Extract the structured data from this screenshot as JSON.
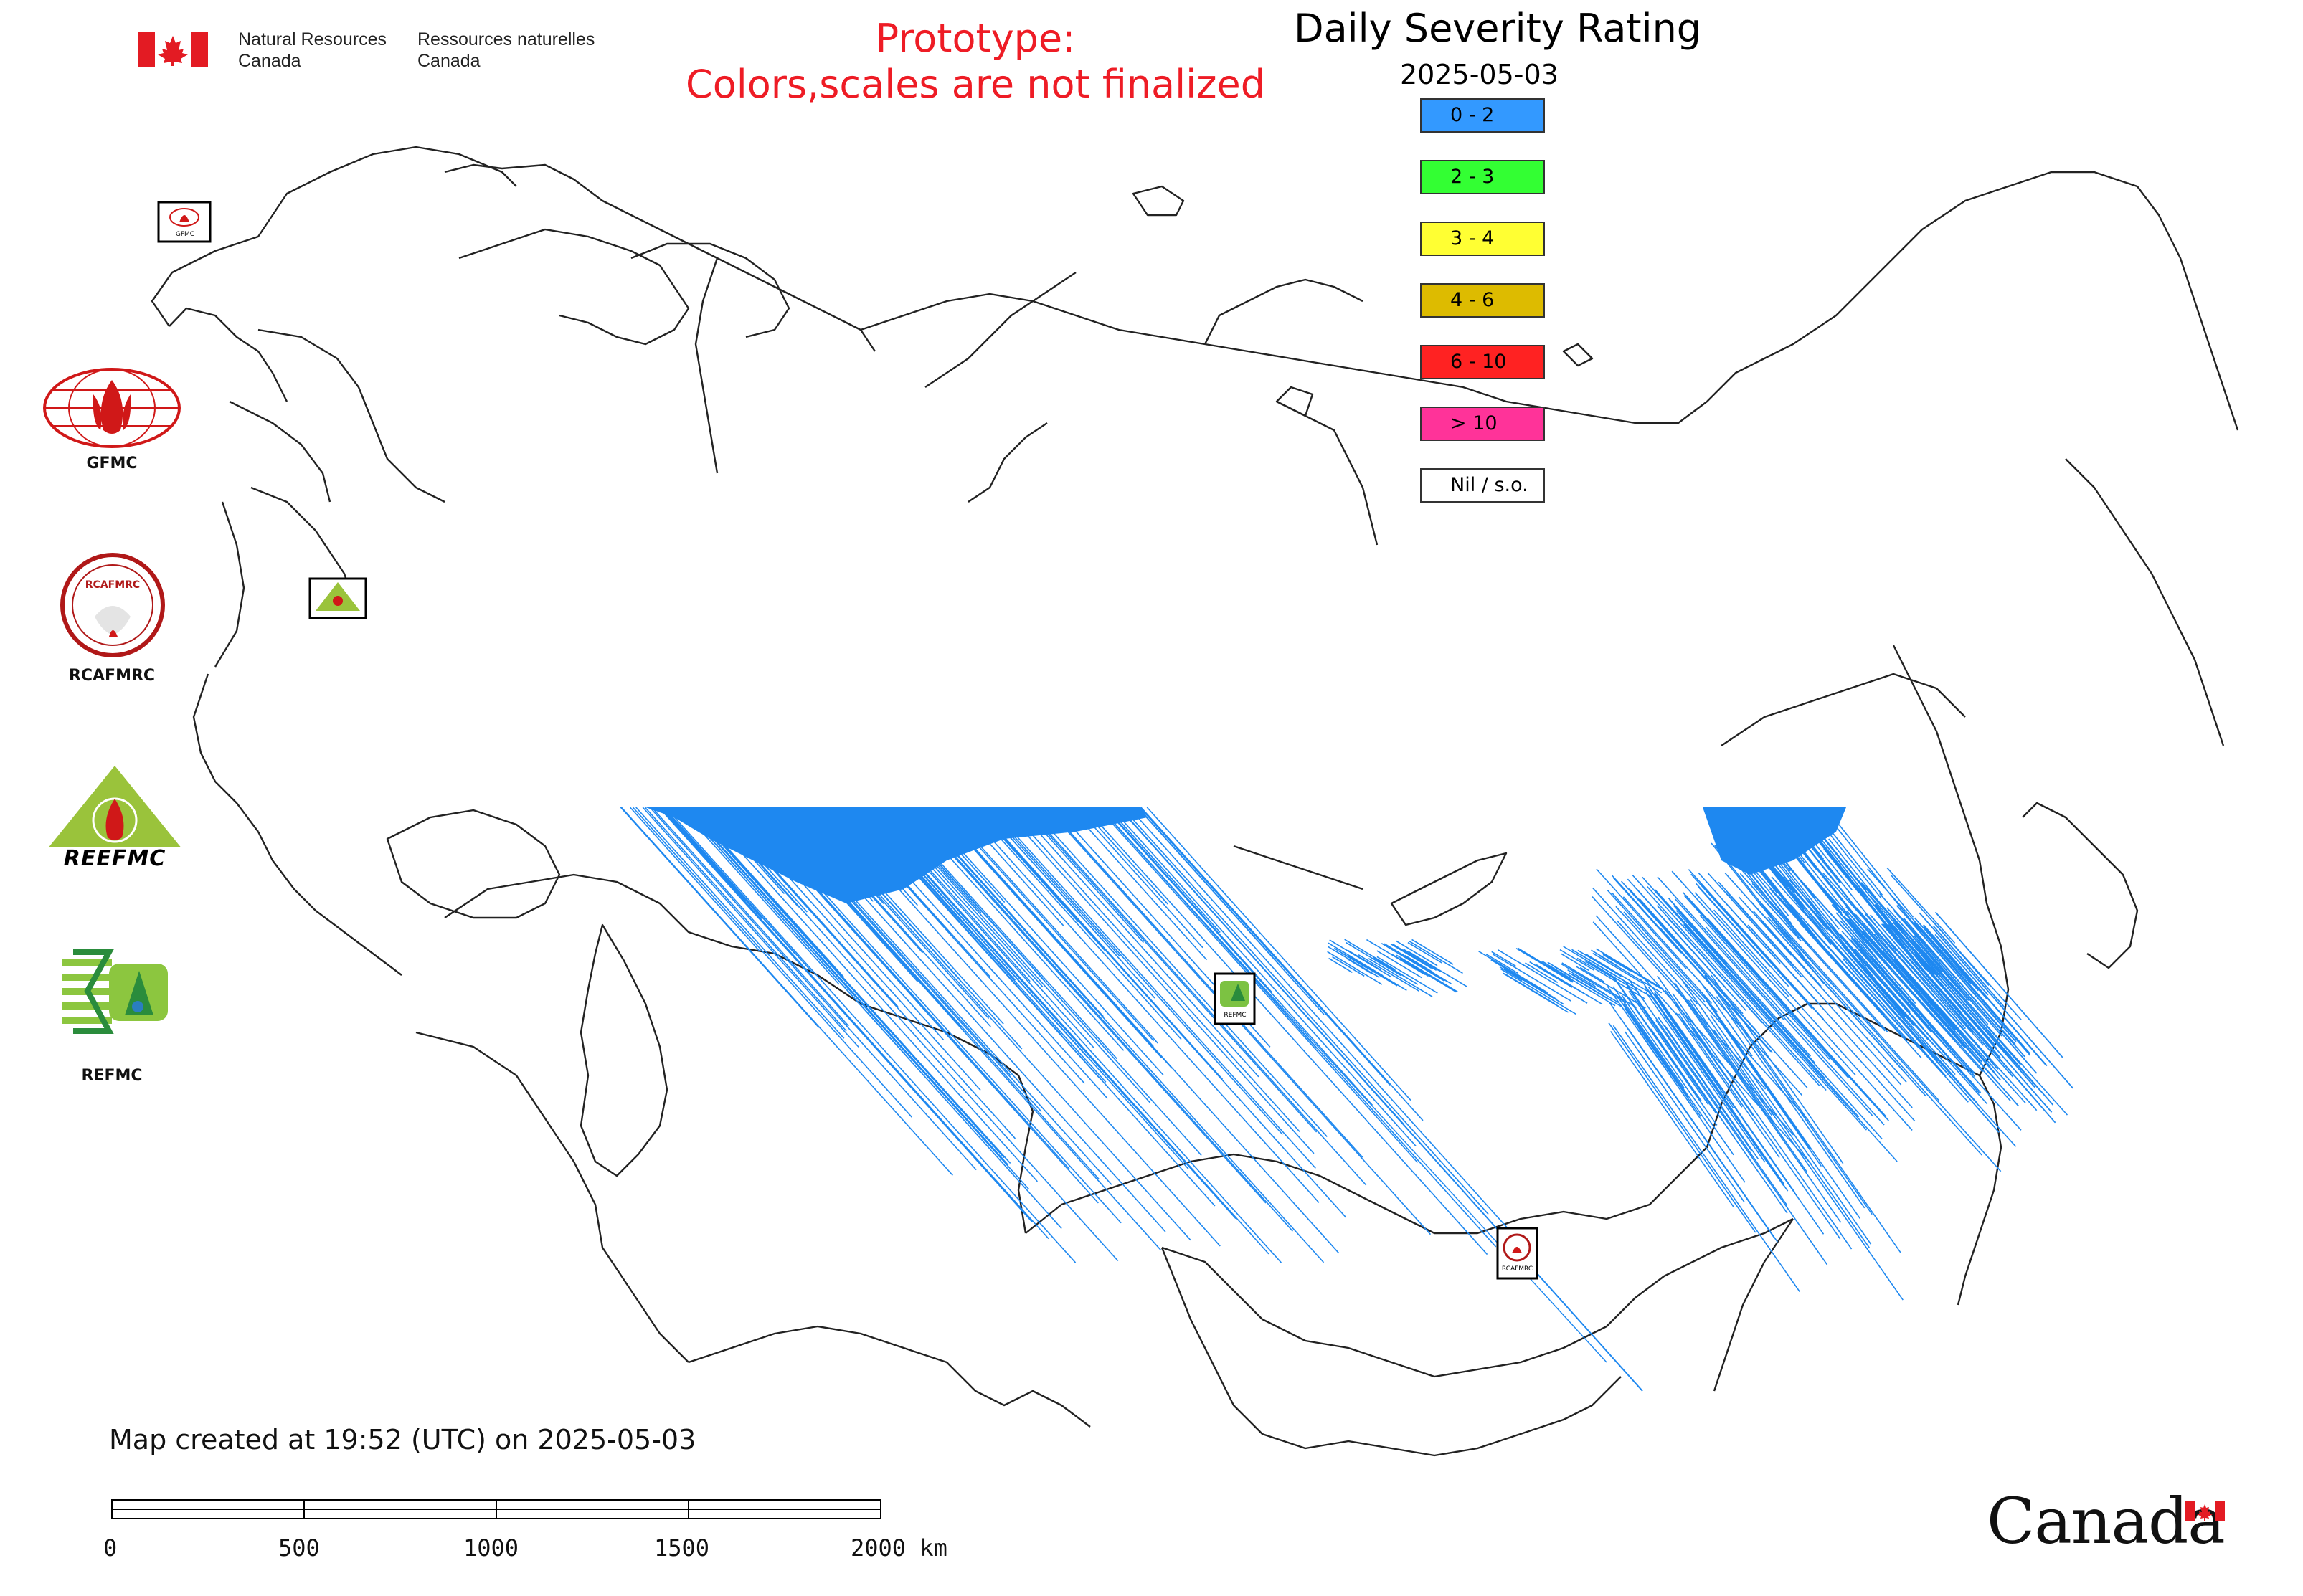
{
  "header": {
    "dept_en_line1": "Natural Resources",
    "dept_en_line2": "Canada",
    "dept_fr_line1": "Ressources naturelles",
    "dept_fr_line2": "Canada",
    "prototype_line1": "Prototype:",
    "prototype_line2": "Colors,scales are not finalized"
  },
  "legend": {
    "title": "Daily Severity Rating",
    "date": "2025-05-03",
    "items": [
      {
        "label": "0 - 2",
        "color": "#3399ff"
      },
      {
        "label": "2 - 3",
        "color": "#33ff33"
      },
      {
        "label": "3 - 4",
        "color": "#ffff33"
      },
      {
        "label": "4 - 6",
        "color": "#ddbb00"
      },
      {
        "label": "6 - 10",
        "color": "#ff2222"
      },
      {
        "label": "> 10",
        "color": "#ff3399"
      },
      {
        "label": "Nil / s.o.",
        "color": "#ffffff"
      }
    ]
  },
  "logos": {
    "gfmc": "GFMC",
    "rcafmrc": "RCAFMRC",
    "reefmc_emblem": "REEFMC",
    "refmc": "REFMC",
    "map_markers": {
      "gfmc": "GFMC",
      "rcafmrc": "RCAFMRC",
      "refmc": "REFMC"
    }
  },
  "footer": {
    "created": "Map created at 19:52 (UTC) on 2025-05-03",
    "scale_ticks": [
      "0",
      "500",
      "1000",
      "1500",
      "2000 km"
    ],
    "wordmark": "Canada"
  },
  "colors": {
    "fire_blue": "#1e88f0",
    "prototype_red": "#ee1c25",
    "flag_red": "#e31b23"
  }
}
